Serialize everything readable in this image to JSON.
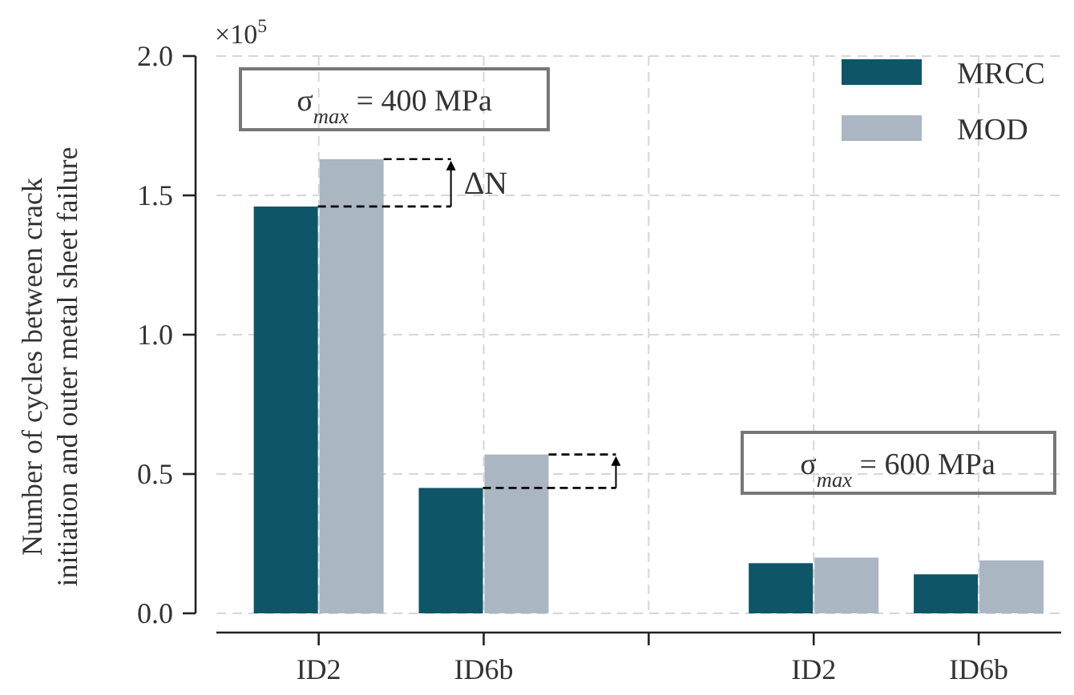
{
  "chart_data": {
    "type": "bar",
    "ylabel": "Number of cycles between crack\ninitiation and outer metal sheet failure",
    "categories": [
      "ID2",
      "ID6b",
      null,
      "ID2",
      "ID6b"
    ],
    "series": [
      {
        "name": "MRCC",
        "color": "#0d5567",
        "values": [
          1.46,
          0.45,
          null,
          0.18,
          0.14
        ]
      },
      {
        "name": "MOD",
        "color": "#aab6c2",
        "values": [
          1.63,
          0.57,
          null,
          0.2,
          0.19
        ]
      }
    ],
    "ylim": [
      0,
      2
    ],
    "yticks": [
      {
        "value": 0,
        "label": "0.0"
      },
      {
        "value": 0.5,
        "label": "0.5"
      },
      {
        "value": 1,
        "label": "1.0"
      },
      {
        "value": 1.5,
        "label": "1.5"
      },
      {
        "value": 2,
        "label": "2.0"
      }
    ],
    "grid": true,
    "legend": "top right",
    "annotations": [
      "×10$^{5}$",
      "σ$_{max}$ = 400 MPa",
      {
        "text": "ΔN",
        "x": "ID2",
        "y": 1.46
      },
      "σ$_{max}$ = 600 MPa"
    ]
  }
}
